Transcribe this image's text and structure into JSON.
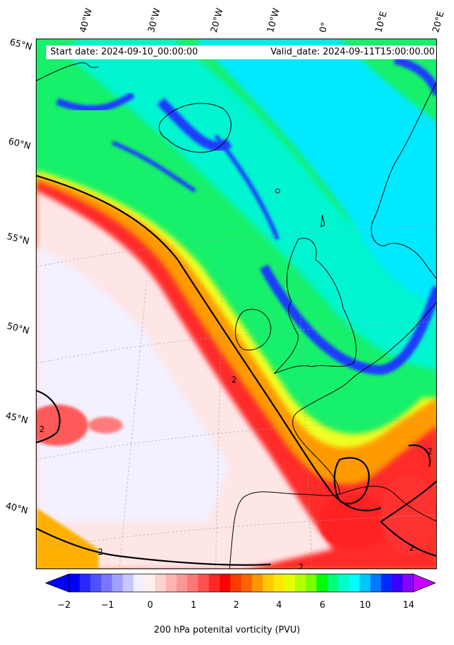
{
  "map": {
    "start_date": "Start date: 2024-09-10_00:00:00",
    "valid_date": "Valid_date: 2024-09-11T15:00:00.00",
    "lat_labels": [
      "65°N",
      "60°N",
      "55°N",
      "50°N",
      "45°N",
      "40°N"
    ],
    "lon_labels": [
      "40°W",
      "30°W",
      "20°W",
      "10°W",
      "0°",
      "10°E",
      "20°E"
    ],
    "contour_label": "2"
  },
  "colorbar": {
    "label": "200 hPa potenital vorticity (PVU)",
    "ticks": [
      "−2",
      "−1",
      "0",
      "1",
      "2",
      "4",
      "6",
      "10",
      "14"
    ],
    "colors": [
      "#0000ff",
      "#2828ff",
      "#5050ff",
      "#7878ff",
      "#a0a0ff",
      "#c8c8ff",
      "#f0f0ff",
      "#fff0f0",
      "#ffd2d2",
      "#ffb4b4",
      "#ff9696",
      "#ff7878",
      "#ff5050",
      "#ff2828",
      "#ff0000",
      "#ff3c00",
      "#ff6400",
      "#ff9600",
      "#ffc800",
      "#ffe600",
      "#e6ff00",
      "#b4ff00",
      "#78ff00",
      "#00ff00",
      "#00ff78",
      "#00ffc8",
      "#00ffff",
      "#00c8ff",
      "#0078ff",
      "#0028ff",
      "#3c00ff",
      "#8c00ff"
    ],
    "under_color": "#0000ff",
    "over_color": "#c800ff"
  }
}
